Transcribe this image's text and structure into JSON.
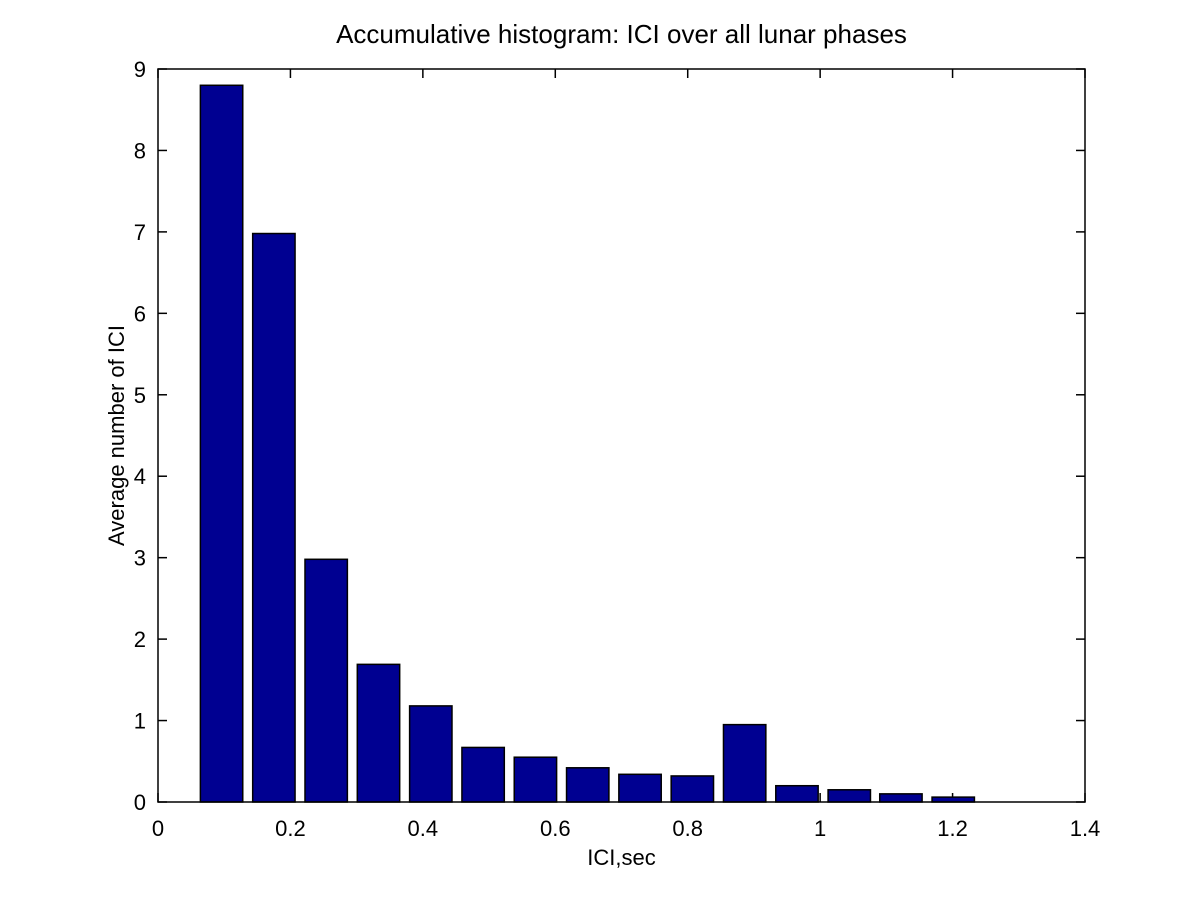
{
  "chart_data": {
    "type": "bar",
    "title": "Accumulative histogram: ICI over all lunar phases",
    "xlabel": "ICI,sec",
    "ylabel": "Average number of ICI",
    "xlim": [
      0,
      1.4
    ],
    "ylim": [
      0,
      9
    ],
    "grid": false,
    "legend": null,
    "bar_width": 0.064,
    "x": [
      0.096,
      0.175,
      0.254,
      0.333,
      0.412,
      0.491,
      0.57,
      0.649,
      0.728,
      0.807,
      0.886,
      0.965,
      1.044,
      1.122,
      1.201
    ],
    "values": [
      8.8,
      6.98,
      2.98,
      1.69,
      1.18,
      0.67,
      0.55,
      0.42,
      0.34,
      0.32,
      0.95,
      0.2,
      0.15,
      0.1,
      0.06
    ],
    "xticks": {
      "values": [
        0,
        0.2,
        0.4,
        0.6,
        0.8,
        1.0,
        1.2,
        1.4
      ],
      "labels": [
        "0",
        "0.2",
        "0.4",
        "0.6",
        "0.8",
        "1",
        "1.2",
        "1.4"
      ]
    },
    "yticks": {
      "values": [
        0,
        1,
        2,
        3,
        4,
        5,
        6,
        7,
        8,
        9
      ],
      "labels": [
        "0",
        "1",
        "2",
        "3",
        "4",
        "5",
        "6",
        "7",
        "8",
        "9"
      ]
    },
    "colors": {
      "bar_fill": "#000091",
      "bar_edge": "#000000",
      "axis": "#000000",
      "text": "#000000",
      "background": "#ffffff"
    }
  }
}
